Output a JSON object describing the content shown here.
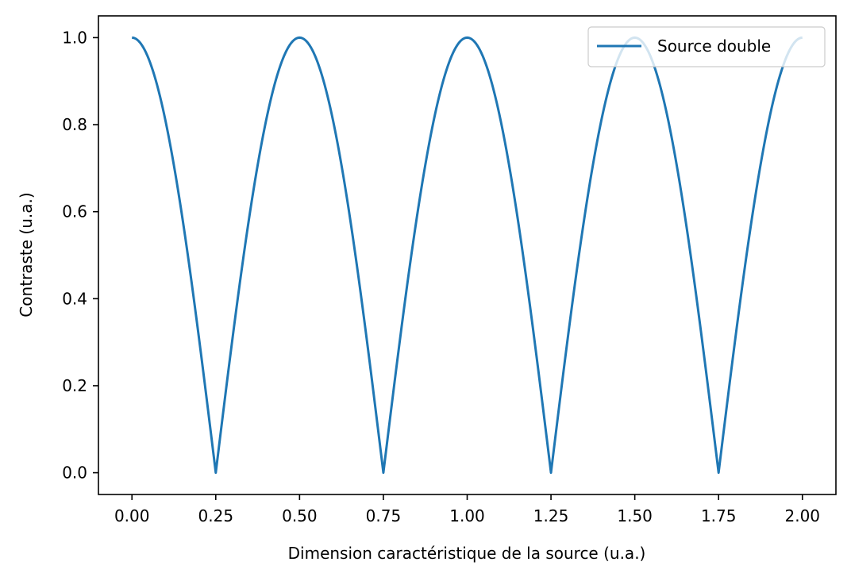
{
  "chart_data": {
    "type": "line",
    "title": "",
    "xlabel": "Dimension caractéristique de la source (u.a.)",
    "ylabel": "Contraste (u.a.)",
    "xlim": [
      -0.1,
      2.1
    ],
    "ylim": [
      -0.05,
      1.05
    ],
    "x_ticks": [
      0.0,
      0.25,
      0.5,
      0.75,
      1.0,
      1.25,
      1.5,
      1.75,
      2.0
    ],
    "x_tick_labels": [
      "0.00",
      "0.25",
      "0.50",
      "0.75",
      "1.00",
      "1.25",
      "1.50",
      "1.75",
      "2.00"
    ],
    "y_ticks": [
      0.0,
      0.2,
      0.4,
      0.6,
      0.8,
      1.0
    ],
    "y_tick_labels": [
      "0.0",
      "0.2",
      "0.4",
      "0.6",
      "0.8",
      "1.0"
    ],
    "grid": false,
    "legend_position": "top-right",
    "series": [
      {
        "name": "Source double",
        "color": "#1f77b4",
        "x": [
          0.0,
          0.05,
          0.1,
          0.15,
          0.2,
          0.25,
          0.3,
          0.35,
          0.4,
          0.45,
          0.5,
          0.55,
          0.6,
          0.65,
          0.7,
          0.75,
          0.8,
          0.85,
          0.9,
          0.95,
          1.0,
          1.05,
          1.1,
          1.15,
          1.2,
          1.25,
          1.3,
          1.35,
          1.4,
          1.45,
          1.5,
          1.55,
          1.6,
          1.65,
          1.7,
          1.75,
          1.8,
          1.85,
          1.9,
          1.95,
          2.0
        ],
        "y": [
          1.0,
          0.951,
          0.809,
          0.588,
          0.309,
          0.0,
          0.309,
          0.588,
          0.809,
          0.951,
          1.0,
          0.951,
          0.809,
          0.588,
          0.309,
          0.0,
          0.309,
          0.588,
          0.809,
          0.951,
          1.0,
          0.951,
          0.809,
          0.588,
          0.309,
          0.0,
          0.309,
          0.588,
          0.809,
          0.951,
          1.0,
          0.951,
          0.809,
          0.588,
          0.309,
          0.0,
          0.309,
          0.588,
          0.809,
          0.951,
          1.0
        ]
      }
    ]
  }
}
